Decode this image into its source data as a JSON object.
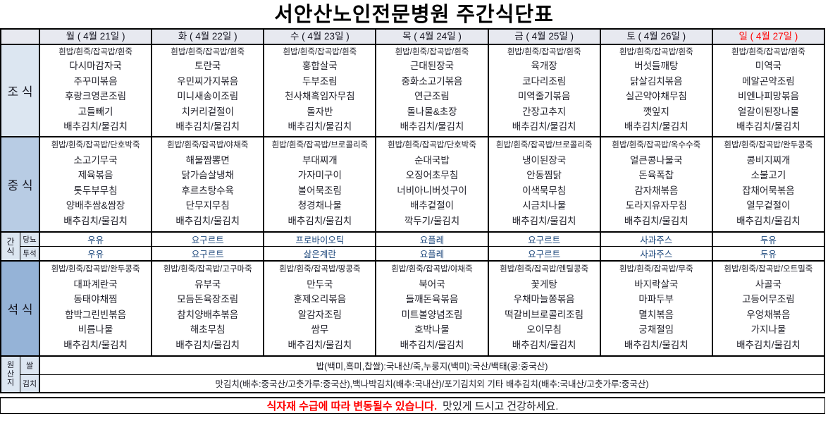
{
  "title": "서안산노인전문병원 주간식단표",
  "days": [
    "월 ( 4월 21일 )",
    "화 ( 4월 22일 )",
    "수 ( 4월 23일 )",
    "목 ( 4월 24일 )",
    "금 ( 4월 25일 )",
    "토 ( 4월 26일 )",
    "일 ( 4월 27일 )"
  ],
  "colors": {
    "sunday_header": "#ff0000",
    "section_label_light": "#dce6f1",
    "lunch_label": "#b8cce4",
    "dinner_label": "#95b3d7",
    "header_row_bg": "#e7e9f0",
    "snack_text": "#1f497d",
    "footer_notice": "#ff0000"
  },
  "meals": [
    {
      "id": "breakfast",
      "label": "조 식",
      "days": [
        {
          "rice": "흰밥/흰죽/잡곡밥/흰죽",
          "items": [
            "다시마감자국",
            "주꾸미볶음",
            "후랑크영콘조림",
            "고들빼기",
            "배추김치/물김치"
          ]
        },
        {
          "rice": "흰밥/흰죽/잡곡밥/흰죽",
          "items": [
            "토란국",
            "우민찌가지볶음",
            "미니새송이조림",
            "치커리겉절이",
            "배추김치/물김치"
          ]
        },
        {
          "rice": "흰밥/흰죽/잡곡밥/흰죽",
          "items": [
            "홍합살국",
            "두부조림",
            "천사채흑임자무침",
            "돌자반",
            "배추김치/물김치"
          ]
        },
        {
          "rice": "흰밥/흰죽/잡곡밥/흰죽",
          "items": [
            "근대된장국",
            "중화소고기볶음",
            "연근조림",
            "돌나물&초장",
            "배추김치/물김치"
          ]
        },
        {
          "rice": "흰밥/흰죽/잡곡밥/흰죽",
          "items": [
            "육개장",
            "코다리조림",
            "미역줄기볶음",
            "간장고추지",
            "배추김치/물김치"
          ]
        },
        {
          "rice": "흰밥/흰죽/잡곡밥/흰죽",
          "items": [
            "버섯들깨탕",
            "닭살김치볶음",
            "실곤약야채무침",
            "깻잎지",
            "배추김치/물김치"
          ]
        },
        {
          "rice": "흰밥/흰죽/잡곡밥/흰죽",
          "items": [
            "미역국",
            "메알곤약조림",
            "비엔나피망볶음",
            "얼갈이된장나물",
            "배추김치/물김치"
          ]
        }
      ]
    },
    {
      "id": "lunch",
      "label": "중 식",
      "days": [
        {
          "rice": "흰밥/흰죽/잡곡밥/단호박죽",
          "items": [
            "소고기무국",
            "제육볶음",
            "톳두부무침",
            "양배추쌈&쌈장",
            "배추김치/물김치"
          ]
        },
        {
          "rice": "흰밥/흰죽/잡곡밥/야채죽",
          "items": [
            "해물짬뽕면",
            "닭가슴살냉채",
            "후르츠탕수육",
            "단무지무침",
            "배추김치/물김치"
          ]
        },
        {
          "rice": "흰밥/흰죽/잡곡밥/브로콜리죽",
          "items": [
            "부대찌개",
            "가자미구이",
            "볼어묵조림",
            "청경채나물",
            "배추김치/물김치"
          ]
        },
        {
          "rice": "흰밥/흰죽/잡곡밥/단호박죽",
          "items": [
            "순대국밥",
            "오징어초무침",
            "너비아니버섯구이",
            "배추겉절이",
            "깍두기/물김치"
          ]
        },
        {
          "rice": "흰밥/흰죽/잡곡밥/브로콜리죽",
          "items": [
            "냉이된장국",
            "안동찜닭",
            "이색묵무침",
            "시금치나물",
            "배추김치/물김치"
          ]
        },
        {
          "rice": "흰밥/흰죽/잡곡밥/옥수수죽",
          "items": [
            "얼큰콩나물국",
            "돈육폭찹",
            "감자채볶음",
            "도라지유자무침",
            "배추김치/물김치"
          ]
        },
        {
          "rice": "흰밥/흰죽/잡곡밥/완두콩죽",
          "items": [
            "콩비지찌개",
            "소불고기",
            "잡채어묵볶음",
            "열무겉절이",
            "배추김치/물김치"
          ]
        }
      ]
    },
    {
      "id": "dinner",
      "label": "석 식",
      "days": [
        {
          "rice": "흰밥/흰죽/잡곡밥/완두콩죽",
          "items": [
            "대파계란국",
            "동태야채찜",
            "함박그린빈볶음",
            "비름나물",
            "배추김치/물김치"
          ]
        },
        {
          "rice": "흰밥/흰죽/잡곡밥/고구마죽",
          "items": [
            "유부국",
            "모듬돈육장조림",
            "참치양배추볶음",
            "해초무침",
            "배추김치/물김치"
          ]
        },
        {
          "rice": "흰밥/흰죽/잡곡밥/땅콩죽",
          "items": [
            "만두국",
            "훈제오리볶음",
            "알감자조림",
            "쌈무",
            "배추김치/물김치"
          ]
        },
        {
          "rice": "흰밥/흰죽/잡곡밥/야채죽",
          "items": [
            "북어국",
            "들깨돈육볶음",
            "미트볼양념조림",
            "호박나물",
            "배추김치/물김치"
          ]
        },
        {
          "rice": "흰밥/흰죽/잡곡밥/렌틸콩죽",
          "items": [
            "꽃게탕",
            "우채마늘쫑볶음",
            "떡갈비브로콜리조림",
            "오이무침",
            "배추김치/물김치"
          ]
        },
        {
          "rice": "흰밥/흰죽/잡곡밥/무죽",
          "items": [
            "바지락살국",
            "마파두부",
            "멸치볶음",
            "궁채절임",
            "배추김치/물김치"
          ]
        },
        {
          "rice": "흰밥/흰죽/잡곡밥/오트밀죽",
          "items": [
            "사골국",
            "고등어무조림",
            "우엉채볶음",
            "가지나물",
            "배추김치/물김치"
          ]
        }
      ]
    }
  ],
  "snacks": {
    "group_label": [
      "간",
      "식"
    ],
    "rows": [
      {
        "label": "당뇨",
        "values": [
          "우유",
          "요구르트",
          "프로바이오틱",
          "요플레",
          "요구르트",
          "사과주스",
          "두유"
        ]
      },
      {
        "label": "투석",
        "values": [
          "우유",
          "요구르트",
          "삶은계란",
          "요플레",
          "요구르트",
          "사과주스",
          "두유"
        ]
      }
    ]
  },
  "origin": {
    "group_label": [
      "원",
      "산",
      "지"
    ],
    "rows": [
      {
        "label": "쌀",
        "value": "밥(백미,흑미,찹쌀):국내산/죽,누룽지(백미):국산/백태(콩:중국산)"
      },
      {
        "label": "김치",
        "value": "맛김치(배추:중국산/고춧가루:중국산),백나박김치(배추:국내산)/포기김치외 기타 배추김치(배추:국내산/고춧가루:중국산)"
      }
    ]
  },
  "footer": {
    "notice_red": "식자재 수급에 따라 변동될수 있습니다.",
    "notice_black": "맛있게 드시고 건강하세요."
  }
}
